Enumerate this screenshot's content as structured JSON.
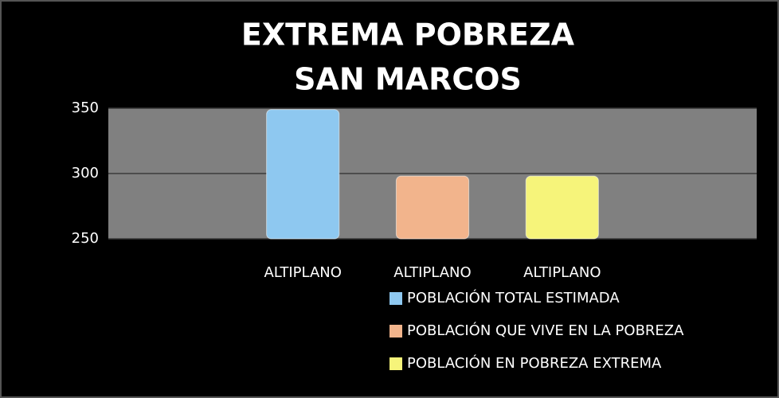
{
  "chart_data": {
    "type": "bar",
    "title": [
      "EXTREMA POBREZA",
      "SAN MARCOS"
    ],
    "categories": [
      null,
      "ALTIPLANO",
      "ALTIPLANO",
      "ALTIPLANO",
      null
    ],
    "series": [
      {
        "name": "POBLACIÓN TOTAL ESTIMADA",
        "color": "#8ec8f0",
        "values": [
          null,
          349,
          null,
          null,
          null
        ]
      },
      {
        "name": "POBLACIÓN QUE VIVE EN LA POBREZA",
        "color": "#f2b48c",
        "values": [
          null,
          null,
          298,
          null,
          null
        ]
      },
      {
        "name": "POBLACIÓN EN POBREZA EXTREMA",
        "color": "#f6f47a",
        "values": [
          null,
          null,
          null,
          298,
          null
        ]
      }
    ],
    "ylim": [
      250,
      350
    ],
    "yticks": [
      250,
      300,
      350
    ],
    "grid": true,
    "legend": "bottom"
  }
}
